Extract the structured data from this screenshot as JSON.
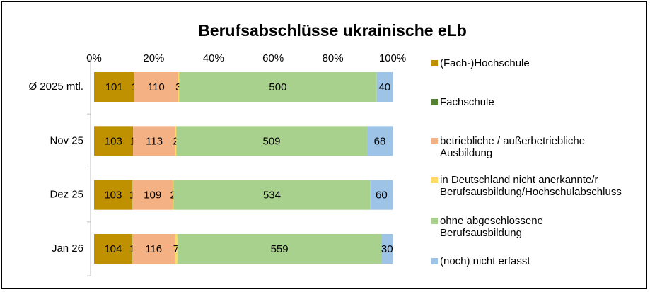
{
  "chart_data": {
    "type": "bar",
    "orientation": "horizontal",
    "stacking": "percent",
    "title": "Berufsabschlüsse ukrainische eLb",
    "categories": [
      "Ø 2025 mtl.",
      "Nov 25",
      "Dez 25",
      "Jan 26"
    ],
    "series": [
      {
        "name": "(Fach-)Hochschule",
        "color": "#bf9000",
        "values": [
          101,
          103,
          103,
          104
        ]
      },
      {
        "name": "Fachschule",
        "color": "#548235",
        "values": [
          1,
          1,
          1,
          1
        ]
      },
      {
        "name": "betriebliche / außerbetriebliche Ausbildung",
        "color": "#f4b183",
        "values": [
          110,
          113,
          109,
          116
        ]
      },
      {
        "name": "in Deutschland nicht anerkannte/r Berufsausbildung/Hochschulabschluss",
        "color": "#ffd966",
        "values": [
          3,
          2,
          2,
          7
        ]
      },
      {
        "name": "ohne abgeschlossene Berufsausbildung",
        "color": "#a9d18e",
        "values": [
          500,
          509,
          534,
          559
        ]
      },
      {
        "name": "(noch) nicht erfasst",
        "color": "#9dc3e6",
        "values": [
          40,
          68,
          60,
          30
        ]
      }
    ],
    "xlim": [
      0,
      100
    ],
    "xticks": [
      {
        "value": 0,
        "label": "0%"
      },
      {
        "value": 20,
        "label": "20%"
      },
      {
        "value": 40,
        "label": "40%"
      },
      {
        "value": 60,
        "label": "60%"
      },
      {
        "value": 80,
        "label": "80%"
      },
      {
        "value": 100,
        "label": "100%"
      }
    ],
    "legend": "right",
    "grid": false
  }
}
